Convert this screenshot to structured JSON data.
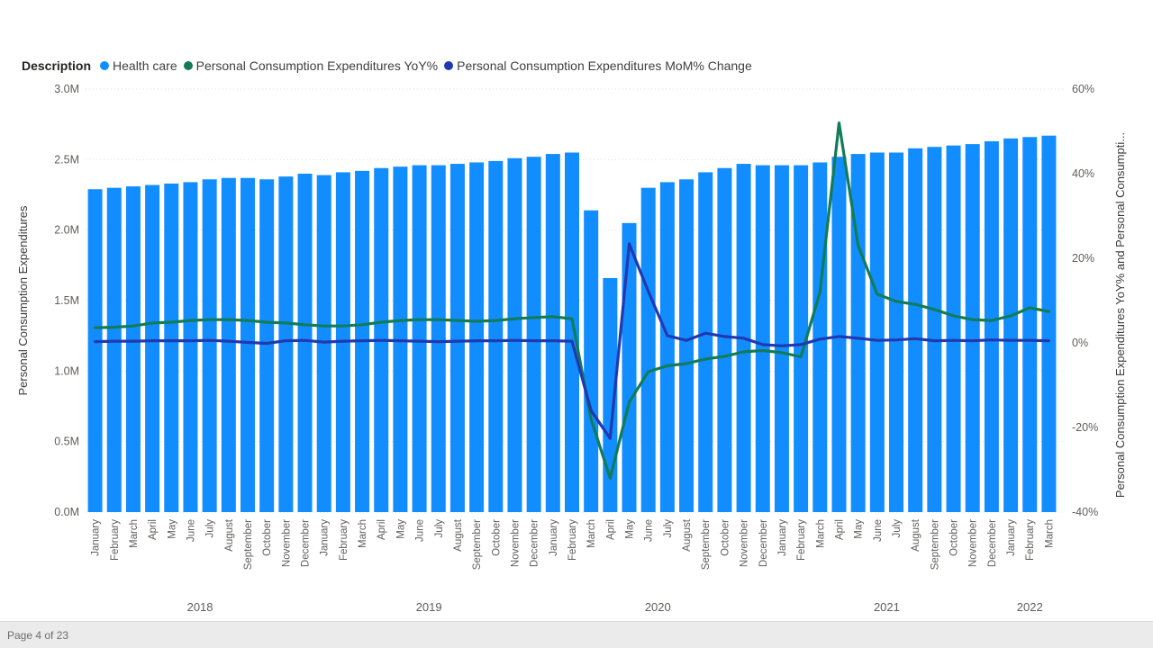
{
  "legend": {
    "title": "Description",
    "items": [
      {
        "label": "Health care",
        "color": "#118DFF"
      },
      {
        "label": "Personal Consumption Expenditures YoY%",
        "color": "#117C57"
      },
      {
        "label": "Personal Consumption Expenditures MoM% Change",
        "color": "#2139B0"
      }
    ]
  },
  "footer": {
    "page_label": "Page 4 of 23"
  },
  "chart_data": {
    "type": "combo",
    "legend_position": "top",
    "grid": "horizontal-dotted",
    "left_axis": {
      "title": "Personal Consumption Expenditures",
      "tick_labels": [
        "3.0M",
        "2.5M",
        "2.0M",
        "1.5M",
        "1.0M",
        "0.5M",
        "0.0M"
      ],
      "min_millions": 0,
      "max_millions": 3
    },
    "right_axis": {
      "title": "Personal Consumption Expenditures YoY% and Personal Consumpti...",
      "tick_labels": [
        "60%",
        "40%",
        "20%",
        "0%",
        "-20%",
        "-40%"
      ],
      "min_pct": -40,
      "max_pct": 60
    },
    "categories": [
      "January",
      "February",
      "March",
      "April",
      "May",
      "June",
      "July",
      "August",
      "September",
      "October",
      "November",
      "December",
      "January",
      "February",
      "March",
      "April",
      "May",
      "June",
      "July",
      "August",
      "September",
      "October",
      "November",
      "December",
      "January",
      "February",
      "March",
      "April",
      "May",
      "June",
      "July",
      "August",
      "September",
      "October",
      "November",
      "December",
      "January",
      "February",
      "March",
      "April",
      "May",
      "June",
      "July",
      "August",
      "September",
      "October",
      "November",
      "December",
      "January",
      "February",
      "March"
    ],
    "year_groups": [
      {
        "label": "2018",
        "start": 0,
        "count": 12
      },
      {
        "label": "2019",
        "start": 12,
        "count": 12
      },
      {
        "label": "2020",
        "start": 24,
        "count": 12
      },
      {
        "label": "2021",
        "start": 36,
        "count": 12
      },
      {
        "label": "2022",
        "start": 48,
        "count": 3
      }
    ],
    "series": [
      {
        "name": "Health care",
        "type": "bar",
        "axis": "left",
        "color": "#118DFF",
        "values_millions": [
          2.29,
          2.3,
          2.31,
          2.32,
          2.33,
          2.34,
          2.36,
          2.37,
          2.37,
          2.36,
          2.38,
          2.4,
          2.39,
          2.41,
          2.42,
          2.44,
          2.45,
          2.46,
          2.46,
          2.47,
          2.48,
          2.49,
          2.51,
          2.52,
          2.54,
          2.55,
          2.14,
          1.66,
          2.05,
          2.3,
          2.34,
          2.36,
          2.41,
          2.44,
          2.47,
          2.46,
          2.46,
          2.46,
          2.48,
          2.52,
          2.54,
          2.55,
          2.55,
          2.58,
          2.59,
          2.6,
          2.61,
          2.63,
          2.65,
          2.66,
          2.67
        ]
      },
      {
        "name": "Personal Consumption Expenditures YoY%",
        "type": "line",
        "axis": "right",
        "color": "#117C57",
        "values_pct": [
          3.6,
          3.7,
          4.0,
          4.7,
          4.9,
          5.3,
          5.5,
          5.5,
          5.3,
          4.9,
          4.7,
          4.3,
          4.0,
          4.0,
          4.3,
          4.9,
          5.3,
          5.5,
          5.5,
          5.3,
          5.1,
          5.3,
          5.7,
          6.0,
          6.2,
          5.7,
          -18.0,
          -32.0,
          -14.0,
          -6.8,
          -5.4,
          -4.9,
          -3.8,
          -3.2,
          -2.1,
          -1.8,
          -2.3,
          -3.3,
          12.0,
          52.0,
          23.0,
          11.5,
          9.8,
          9.1,
          7.9,
          6.4,
          5.5,
          5.3,
          6.4,
          8.3,
          7.4
        ]
      },
      {
        "name": "Personal Consumption Expenditures MoM% Change",
        "type": "line",
        "axis": "right",
        "color": "#2139B0",
        "values_pct": [
          0.3,
          0.4,
          0.4,
          0.5,
          0.5,
          0.5,
          0.6,
          0.4,
          0.1,
          -0.1,
          0.5,
          0.6,
          0.2,
          0.4,
          0.5,
          0.6,
          0.5,
          0.4,
          0.3,
          0.4,
          0.5,
          0.5,
          0.6,
          0.5,
          0.5,
          0.4,
          -16.0,
          -22.6,
          23.4,
          12.2,
          1.7,
          0.6,
          2.3,
          1.5,
          1.1,
          -0.4,
          -0.7,
          -0.4,
          0.9,
          1.5,
          1.1,
          0.6,
          0.7,
          1.0,
          0.5,
          0.6,
          0.5,
          0.7,
          0.6,
          0.6,
          0.5
        ]
      }
    ]
  }
}
